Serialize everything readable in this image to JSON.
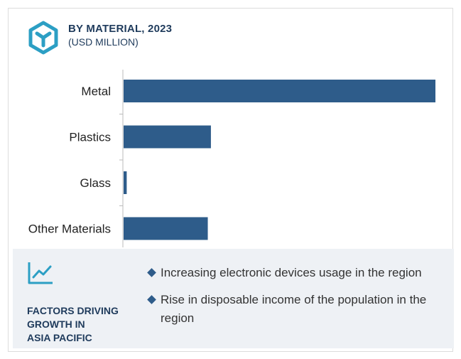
{
  "header": {
    "title": "BY MATERIAL, 2023",
    "subtitle": "(USD MILLION)",
    "logo_icon": "cube-outline-icon"
  },
  "chart_data": {
    "type": "bar",
    "orientation": "horizontal",
    "categories": [
      "Metal",
      "Plastics",
      "Glass",
      "Other Materials"
    ],
    "values": [
      100,
      28,
      1,
      27
    ],
    "xlim": [
      0,
      100
    ],
    "grid": false,
    "bar_color": "#2e5c8a"
  },
  "factors": {
    "icon": "trend-line-icon",
    "heading_lines": [
      "FACTORS DRIVING",
      "GROWTH IN",
      "ASIA PACIFIC"
    ],
    "items": [
      "Increasing electronic devices usage in the region",
      "Rise in disposable income of the population in the region"
    ]
  },
  "colors": {
    "accent": "#2e5c8a",
    "heading": "#1f3b5c",
    "logo": "#2c9fc4",
    "panel": "#eef1f5"
  }
}
